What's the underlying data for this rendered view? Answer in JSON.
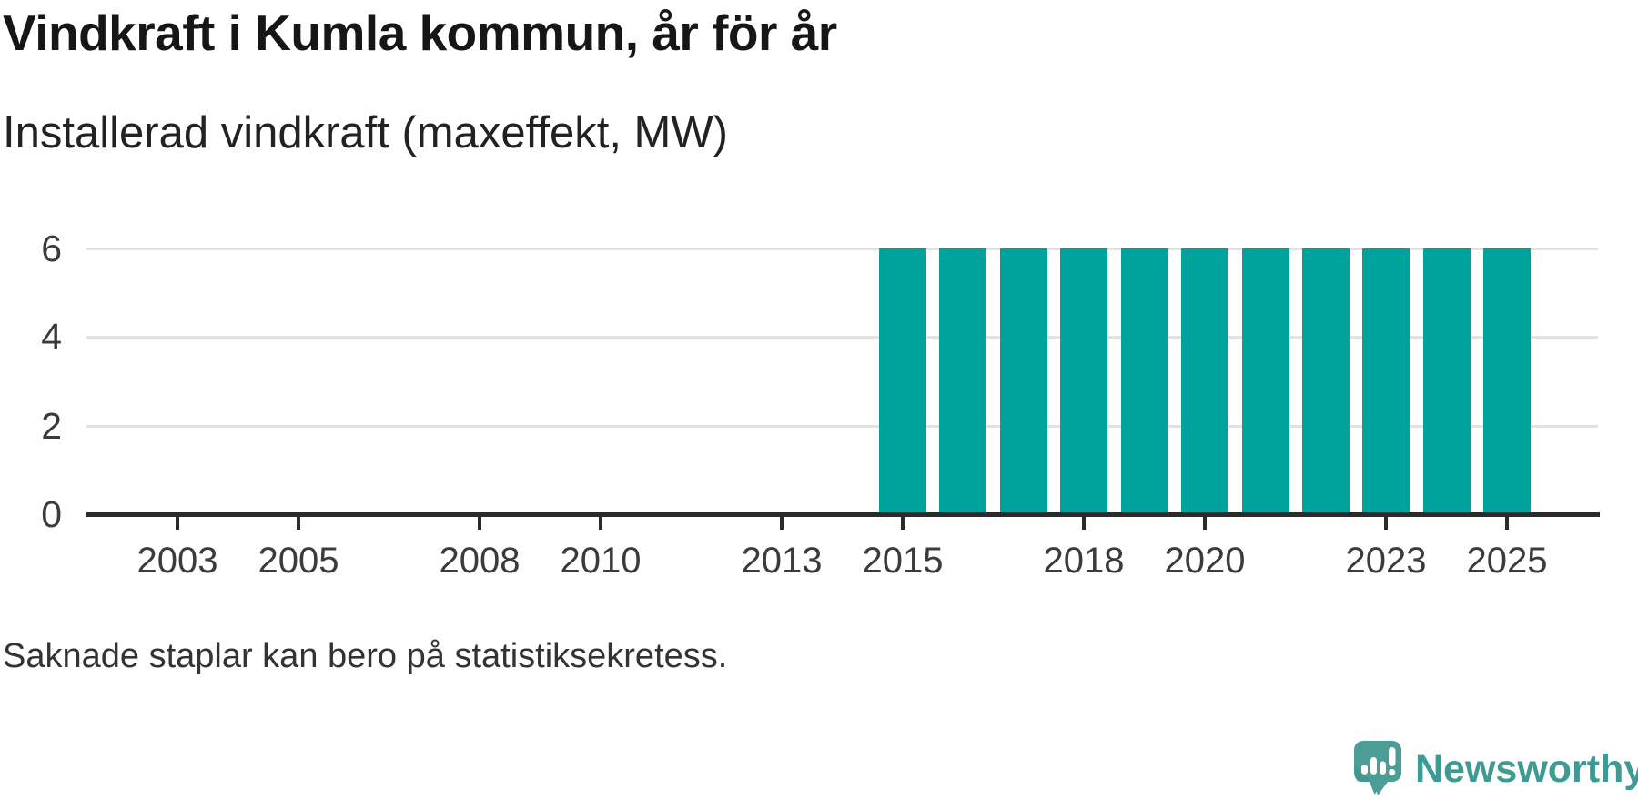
{
  "title": "Vindkraft i Kumla kommun, år för år",
  "subtitle": "Installerad vindkraft (maxeffekt, MW)",
  "footnote": "Saknade staplar kan bero på statistiksekretess.",
  "branding": {
    "name": "Newsworthy",
    "icon": "newsworthy-speech-bubble-bar-chart-icon",
    "logo_color": "#4b9d96",
    "text_color": "#3d9b94"
  },
  "colors": {
    "bar": "#00a39b",
    "gridline": "#e2e2e2",
    "axis": "#2b2b2b",
    "title_text": "#161616",
    "label_text": "#3b3b3b"
  },
  "chart_data": {
    "type": "bar",
    "title": "Vindkraft i Kumla kommun, år för år",
    "subtitle": "Installerad vindkraft (maxeffekt, MW)",
    "unit": "MW",
    "x": [
      2015,
      2016,
      2017,
      2018,
      2019,
      2020,
      2021,
      2022,
      2023,
      2024,
      2025
    ],
    "values": [
      6,
      6,
      6,
      6,
      6,
      6,
      6,
      6,
      6,
      6,
      6
    ],
    "x_domain": [
      2002,
      2026
    ],
    "x_tick_labels": [
      2003,
      2005,
      2008,
      2010,
      2013,
      2015,
      2018,
      2020,
      2023,
      2025
    ],
    "y_ticks": [
      0,
      2,
      4,
      6
    ],
    "ylim": [
      0,
      6
    ],
    "grid": "horizontal",
    "legend": "none",
    "bar_color": "#00a39b",
    "note": "Saknade staplar kan bero på statistiksekretess."
  }
}
